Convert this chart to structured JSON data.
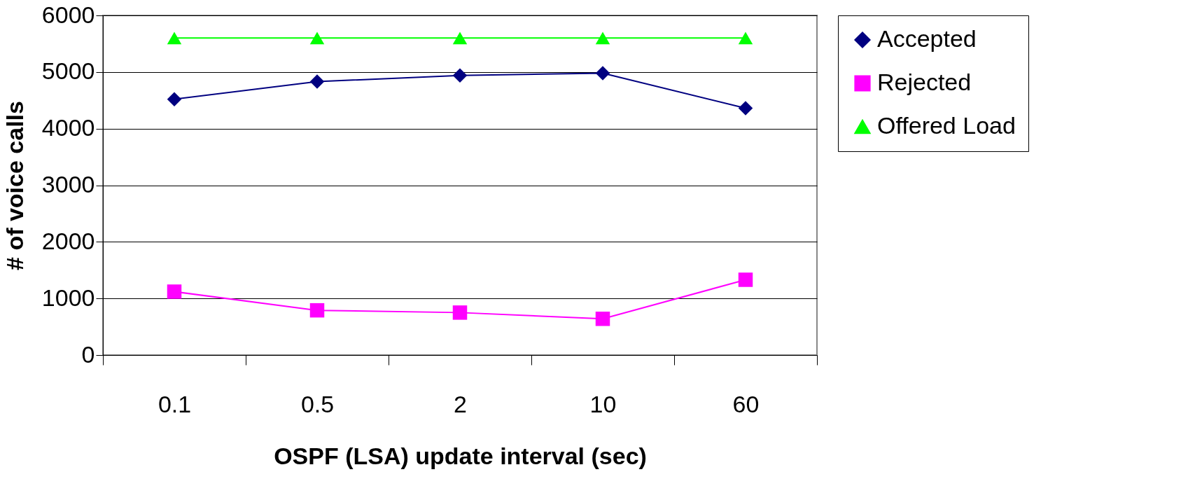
{
  "chart_data": {
    "type": "line",
    "xlabel": "OSPF (LSA) update interval (sec)",
    "ylabel": "# of voice calls",
    "categories": [
      "0.1",
      "0.5",
      "2",
      "10",
      "60"
    ],
    "ylim": [
      0,
      6000
    ],
    "yticks": [
      0,
      1000,
      2000,
      3000,
      4000,
      5000,
      6000
    ],
    "grid": "y",
    "legend": "right",
    "line_style": "solid",
    "series": [
      {
        "name": "Accepted",
        "color": "#000080",
        "marker": "diamond",
        "values": [
          4520,
          4830,
          4940,
          4980,
          4360
        ]
      },
      {
        "name": "Rejected",
        "color": "#ff00ff",
        "marker": "square",
        "values": [
          1120,
          790,
          750,
          640,
          1330
        ]
      },
      {
        "name": "Offered Load",
        "color": "#00ff00",
        "marker": "triangle",
        "values": [
          5600,
          5600,
          5600,
          5600,
          5600
        ]
      }
    ]
  }
}
